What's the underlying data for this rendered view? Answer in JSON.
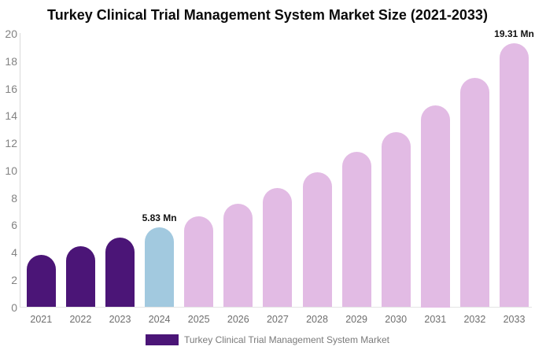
{
  "chart_data": {
    "type": "bar",
    "title": "Turkey Clinical Trial Management System Market Size (2021-2033)",
    "legend": "Turkey Clinical Trial Management System Market",
    "unit": "Mn",
    "categories": [
      "2021",
      "2022",
      "2023",
      "2024",
      "2025",
      "2026",
      "2027",
      "2028",
      "2029",
      "2030",
      "2031",
      "2032",
      "2033"
    ],
    "values": [
      3.8,
      4.45,
      5.1,
      5.83,
      6.65,
      7.55,
      8.7,
      9.85,
      11.35,
      12.8,
      14.75,
      16.8,
      19.31
    ],
    "bar_roles": [
      "historical",
      "historical",
      "historical",
      "base_year",
      "forecast",
      "forecast",
      "forecast",
      "forecast",
      "forecast",
      "forecast",
      "forecast",
      "forecast",
      "forecast"
    ],
    "value_labels": {
      "2024": "5.83 Mn",
      "2033": "19.31 Mn"
    },
    "y_ticks": [
      "0",
      "2",
      "4",
      "6",
      "8",
      "10",
      "12",
      "14",
      "16",
      "18",
      "20"
    ],
    "ylim": [
      0,
      20
    ],
    "grid": false,
    "legend_position": "bottom-center",
    "colors": {
      "historical": "#4B1577",
      "base_year": "#A2C9DF",
      "forecast": "#E2BBE4",
      "axis_line": "#D9D9D9",
      "y_tick_text": "#828282",
      "x_tick_text": "#6E6E6E",
      "value_label_text": "#111111",
      "legend_text": "#7A7A7A",
      "title_text": "#0A0A0A"
    }
  }
}
